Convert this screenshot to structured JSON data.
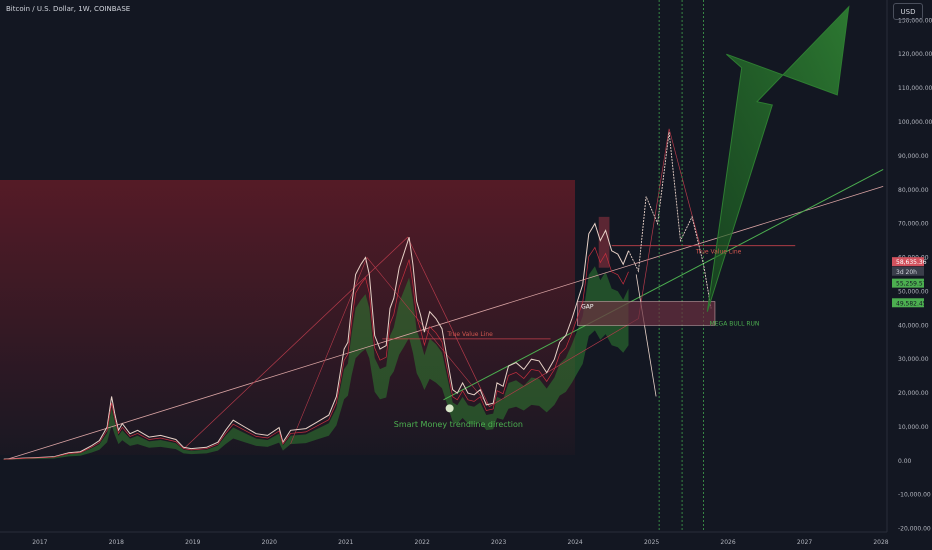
{
  "header": {
    "symbol_line": "Bitcoin / U.S. Dollar, 1W, COINBASE"
  },
  "currency_button": "USD",
  "colors": {
    "background": "#131722",
    "price_line": "#e8d2c8",
    "red_zone": "#8b1e2a",
    "green_cloud": "#2f7d32",
    "trend_line": "#d9a3a3",
    "green_trend": "#4caf50",
    "true_value": "#c2404a",
    "arrow": "#2e7d32"
  },
  "chart_data": {
    "type": "line",
    "title": "",
    "xlabel": "",
    "ylabel": "",
    "x_ticks": [
      "2017",
      "2018",
      "2019",
      "2020",
      "2021",
      "2022",
      "2023",
      "2024",
      "2025",
      "2026",
      "2027",
      "2028"
    ],
    "y_ticks": [
      "130,000.00",
      "120,000.00",
      "110,000.00",
      "100,000.00",
      "90,000.00",
      "80,000.00",
      "70,000.00",
      "60,000.00",
      "50,000.00",
      "40,000.00",
      "30,000.00",
      "20,000.00",
      "10,000.00",
      "0.00",
      "-10,000.00",
      "-20,000.00"
    ],
    "xlim": [
      2016.5,
      2028.1
    ],
    "ylim": [
      -21000,
      136000
    ],
    "series": [
      {
        "x": [
          2016.55,
          2016.8,
          2017.0,
          2017.2,
          2017.4,
          2017.55,
          2017.7,
          2017.8,
          2017.9,
          2017.96,
          2018.0,
          2018.05,
          2018.1,
          2018.2,
          2018.3,
          2018.45,
          2018.6,
          2018.8,
          2018.9,
          2019.0,
          2019.2,
          2019.35,
          2019.45,
          2019.55,
          2019.7,
          2019.85,
          2020.0,
          2020.15,
          2020.2,
          2020.3,
          2020.5,
          2020.65,
          2020.8,
          2020.9,
          2021.0,
          2021.05,
          2021.1,
          2021.15,
          2021.22,
          2021.28,
          2021.33,
          2021.4,
          2021.47,
          2021.55,
          2021.6,
          2021.65,
          2021.72,
          2021.78,
          2021.85,
          2021.9,
          2021.95,
          2022.0,
          2022.05,
          2022.12,
          2022.2,
          2022.28,
          2022.35,
          2022.42,
          2022.48,
          2022.55,
          2022.62,
          2022.7,
          2022.78,
          2022.86,
          2022.95,
          2023.0,
          2023.08,
          2023.15,
          2023.25,
          2023.35,
          2023.45,
          2023.55,
          2023.65,
          2023.75,
          2023.82,
          2023.9,
          2023.98,
          2024.05,
          2024.12,
          2024.2,
          2024.28,
          2024.35,
          2024.42,
          2024.5,
          2024.58,
          2024.65,
          2024.72
        ],
        "y": [
          500,
          800,
          1000,
          1200,
          2400,
          2700,
          4500,
          6000,
          10000,
          19000,
          14000,
          9000,
          11000,
          8000,
          9000,
          7000,
          7500,
          6300,
          4000,
          3600,
          4000,
          5500,
          9000,
          12000,
          10000,
          8000,
          7500,
          9800,
          5500,
          9000,
          9500,
          11500,
          13500,
          19000,
          33000,
          35000,
          46000,
          55000,
          58000,
          60000,
          55000,
          37000,
          33000,
          34000,
          45000,
          48000,
          57000,
          61000,
          66000,
          58000,
          47000,
          43000,
          38000,
          44000,
          42000,
          39000,
          30000,
          21000,
          20000,
          23000,
          20000,
          19500,
          21000,
          16500,
          17000,
          23000,
          22000,
          28000,
          29000,
          27000,
          30000,
          29500,
          26000,
          30000,
          35000,
          37000,
          42000,
          47000,
          52000,
          67000,
          70000,
          65000,
          68000,
          62000,
          61000,
          58000,
          62000
        ]
      }
    ],
    "annotations": {
      "true_value_label": "True Value Line",
      "true_value_label_2": "True Value Line",
      "gap_label": "GAP",
      "mega_label": "MEGA BULL RUN",
      "smart_money_label": "Smart Money trendline direction"
    },
    "price_tags": [
      "58,635.36",
      "3d 20h",
      "55,259.57",
      "49,582.45"
    ],
    "grid": false,
    "legend": "none"
  }
}
